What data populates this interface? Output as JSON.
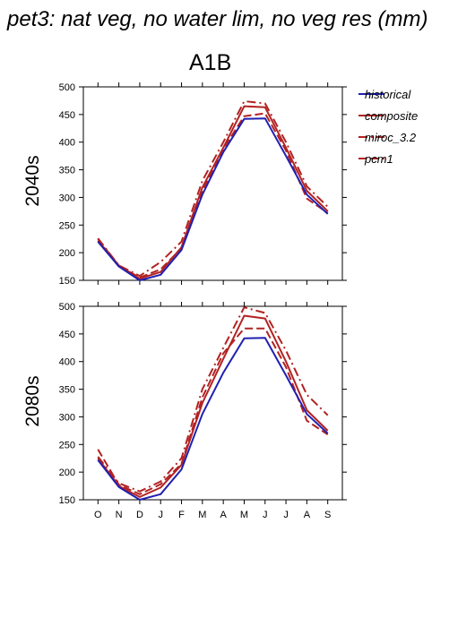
{
  "page_title": "pet3: nat veg, no water lim, no veg res (mm)",
  "scenario_title": "A1B",
  "colors": {
    "historical": "#2020b0",
    "future": "#b22222"
  },
  "legend": [
    {
      "label": "historical",
      "style": "solid",
      "color": "#2020b0"
    },
    {
      "label": "composite",
      "style": "solid",
      "color": "#b22222"
    },
    {
      "label": "miroc_3.2",
      "style": "dashdot",
      "color": "#b22222"
    },
    {
      "label": "pcm1",
      "style": "dashed",
      "color": "#b22222"
    }
  ],
  "chart_data": [
    {
      "type": "line",
      "title": "A1B",
      "ylabel": "2040s",
      "categories": [
        "O",
        "N",
        "D",
        "J",
        "F",
        "M",
        "A",
        "M",
        "J",
        "J",
        "A",
        "S"
      ],
      "yticks": [
        150,
        200,
        250,
        300,
        350,
        400,
        450,
        500
      ],
      "ylim": [
        150,
        500
      ],
      "grid": false,
      "legend_position": "right",
      "series": [
        {
          "name": "historical",
          "style": "solid",
          "color": "#2020b0",
          "values": [
            220,
            175,
            150,
            160,
            205,
            305,
            382,
            442,
            443,
            375,
            305,
            270
          ]
        },
        {
          "name": "composite",
          "style": "solid",
          "color": "#b22222",
          "values": [
            222,
            177,
            153,
            165,
            210,
            318,
            390,
            465,
            463,
            390,
            312,
            275
          ]
        },
        {
          "name": "miroc_3.2",
          "style": "dashdot",
          "color": "#b22222",
          "values": [
            226,
            177,
            158,
            183,
            220,
            330,
            400,
            474,
            470,
            400,
            320,
            283
          ]
        },
        {
          "name": "pcm1",
          "style": "dashed",
          "color": "#b22222",
          "values": [
            225,
            176,
            155,
            170,
            208,
            312,
            388,
            447,
            452,
            385,
            298,
            272
          ]
        }
      ]
    },
    {
      "type": "line",
      "ylabel": "2080s",
      "categories": [
        "O",
        "N",
        "D",
        "J",
        "F",
        "M",
        "A",
        "M",
        "J",
        "J",
        "A",
        "S"
      ],
      "yticks": [
        150,
        200,
        250,
        300,
        350,
        400,
        450,
        500
      ],
      "ylim": [
        150,
        500
      ],
      "grid": false,
      "series": [
        {
          "name": "historical",
          "style": "solid",
          "color": "#2020b0",
          "values": [
            222,
            173,
            150,
            160,
            205,
            305,
            380,
            442,
            443,
            375,
            305,
            270
          ]
        },
        {
          "name": "composite",
          "style": "solid",
          "color": "#b22222",
          "values": [
            225,
            175,
            155,
            172,
            213,
            325,
            405,
            483,
            478,
            400,
            312,
            275
          ]
        },
        {
          "name": "miroc_3.2",
          "style": "dashdot",
          "color": "#b22222",
          "values": [
            228,
            180,
            165,
            183,
            225,
            350,
            425,
            498,
            488,
            420,
            340,
            303
          ]
        },
        {
          "name": "pcm1",
          "style": "dashed",
          "color": "#b22222",
          "values": [
            241,
            177,
            160,
            178,
            215,
            335,
            415,
            460,
            460,
            390,
            293,
            268
          ]
        }
      ]
    }
  ]
}
